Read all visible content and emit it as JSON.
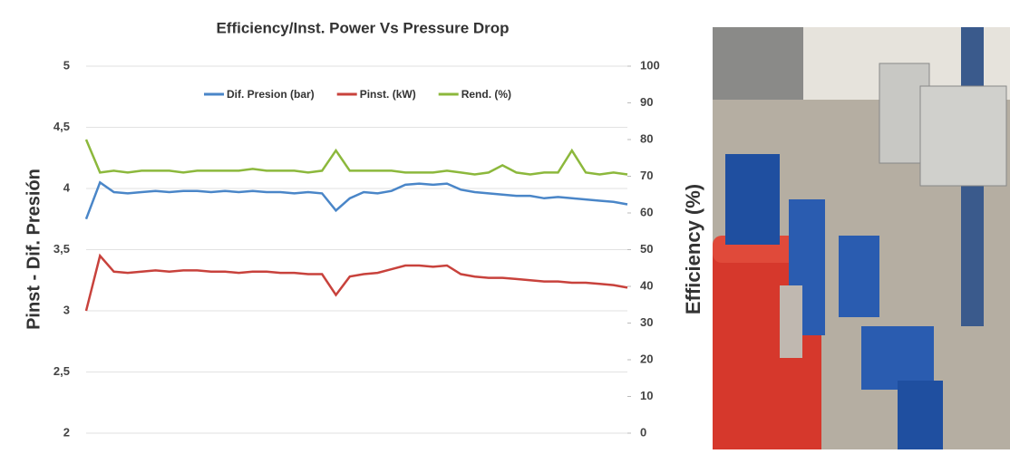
{
  "chart_data": {
    "type": "line",
    "title": "Efficiency/Inst. Power Vs Pressure Drop",
    "ylabel": "Pinst - Dif. Presión",
    "y2label": "Efficiency (%)",
    "ylim": [
      2,
      5
    ],
    "yticks": [
      2,
      {
        "value": 2.5,
        "label": "2,5"
      },
      3,
      {
        "value": 3.5,
        "label": "3,5"
      },
      4,
      {
        "value": 4.5,
        "label": "4,5"
      },
      5
    ],
    "y2lim": [
      0,
      100
    ],
    "y2ticks": [
      0,
      10,
      20,
      30,
      40,
      50,
      60,
      70,
      80,
      90,
      100
    ],
    "grid": true,
    "legend": "top",
    "series": [
      {
        "name": "Dif. Presion (bar)",
        "color": "#4a86c8",
        "values": [
          3.75,
          4.05,
          3.97,
          3.96,
          3.97,
          3.98,
          3.97,
          3.98,
          3.98,
          3.97,
          3.98,
          3.97,
          3.98,
          3.97,
          3.97,
          3.96,
          3.97,
          3.96,
          3.82,
          3.92,
          3.97,
          3.96,
          3.98,
          4.03,
          4.04,
          4.03,
          4.04,
          3.99,
          3.97,
          3.96,
          3.95,
          3.94,
          3.94,
          3.92,
          3.93,
          3.92,
          3.91,
          3.9,
          3.89,
          3.87
        ]
      },
      {
        "name": "Pinst. (kW)",
        "color": "#c8423c",
        "values": [
          3.0,
          3.45,
          3.32,
          3.31,
          3.32,
          3.33,
          3.32,
          3.33,
          3.33,
          3.32,
          3.32,
          3.31,
          3.32,
          3.32,
          3.31,
          3.31,
          3.3,
          3.3,
          3.13,
          3.28,
          3.3,
          3.31,
          3.34,
          3.37,
          3.37,
          3.36,
          3.37,
          3.3,
          3.28,
          3.27,
          3.27,
          3.26,
          3.25,
          3.24,
          3.24,
          3.23,
          3.23,
          3.22,
          3.21,
          3.19
        ]
      },
      {
        "name": "Rend. (%)",
        "color": "#8cb83c",
        "axis": "y2",
        "values": [
          80,
          71,
          71.5,
          71,
          71.5,
          71.5,
          71.5,
          71,
          71.5,
          71.5,
          71.5,
          71.5,
          72,
          71.5,
          71.5,
          71.5,
          71,
          71.5,
          77,
          71.5,
          71.5,
          71.5,
          71.5,
          71,
          71,
          71,
          71.5,
          71,
          70.5,
          71,
          73,
          71,
          70.5,
          71,
          71,
          77,
          71,
          70.5,
          71,
          70.5
        ]
      }
    ]
  }
}
